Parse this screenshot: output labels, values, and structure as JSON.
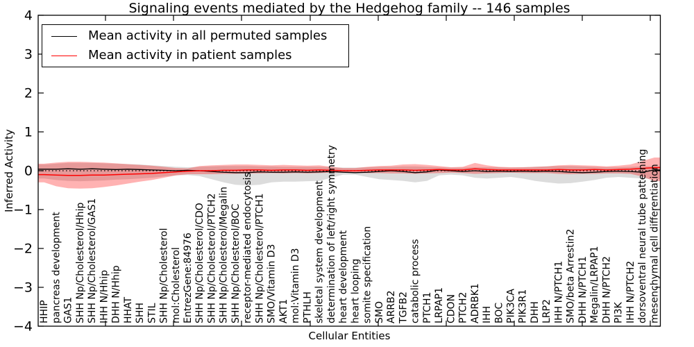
{
  "figure": {
    "title": "Signaling events mediated by the Hedgehog family -- 146 samples",
    "xlabel": "Cellular Entities",
    "ylabel": "Inferred Activity"
  },
  "colors": {
    "permuted_line": "#000000",
    "patient_line": "#ff0000",
    "permuted_band": "rgba(128,128,128,0.28)",
    "patient_band": "rgba(255,0,0,0.30)",
    "axis": "#000000"
  },
  "chart_data": {
    "type": "line",
    "title": "Signaling events mediated by the Hedgehog family -- 146 samples",
    "xlabel": "Cellular Entities",
    "ylabel": "Inferred Activity",
    "ylim": [
      -4,
      4
    ],
    "yticks": [
      4,
      3,
      2,
      1,
      0,
      -1,
      -2,
      -3,
      -4
    ],
    "ytick_labels": [
      "4",
      "3",
      "2",
      "1",
      "0",
      "−1",
      "−2",
      "−3",
      "−4"
    ],
    "legend_position": "upper left",
    "zero_line": true,
    "grid": false,
    "categories": [
      "HHIP",
      "pancreas development",
      "GAS1",
      "SHH Np/Cholesterol/Hhip",
      "SHH Np/Cholesterol/GAS1",
      "IHH N/Hhip",
      "DHH N/Hhip",
      "HHAT",
      "SHH",
      "STIL",
      "SHH Np/Cholesterol",
      "mol:Cholesterol",
      "EntrezGene:84976",
      "SHH Np/Cholesterol/CDO",
      "SHH Np/Cholesterol/PTCH2",
      "SHH Np/Cholesterol/Megalin",
      "SHH Np/Cholesterol/BOC",
      "receptor-mediated endocytosis",
      "SHH Np/Cholesterol/PTCH1",
      "SMO/Vitamin D3",
      "AKT1",
      "mol:Vitamin D3",
      "PTHLH",
      "skeletal system development",
      "determination of left/right symmetry",
      "heart development",
      "heart looping",
      "somite specification",
      "SMO",
      "ARRB2",
      "TGFB2",
      "catabolic process",
      "PTCH1",
      "LRPAP1",
      "CDON",
      "PTCH2",
      "ADRBK1",
      "IHH",
      "BOC",
      "PIK3CA",
      "PIK3R1",
      "DHH",
      "LRP2",
      "IHH N/PTCH1",
      "SMO/beta Arrestin2",
      "DHH N/PTCH1",
      "Megalin/LRPAP1",
      "DHH N/PTCH2",
      "PI3K",
      "IHH N/PTCH2",
      "dorsoventral neural tube patterning",
      "mesenchymal cell differentiation"
    ],
    "series": [
      {
        "name": "Mean activity in all permuted samples",
        "color": "#000000",
        "band_color": "rgba(128,128,128,0.28)",
        "values": [
          0.04,
          0.04,
          0.05,
          0.04,
          0.05,
          0.04,
          0.03,
          0.04,
          0.03,
          0.02,
          0.01,
          0.0,
          0.01,
          0.0,
          -0.02,
          -0.04,
          -0.05,
          -0.05,
          -0.03,
          -0.04,
          -0.04,
          -0.03,
          -0.04,
          -0.03,
          -0.02,
          -0.04,
          -0.05,
          -0.04,
          -0.02,
          0.0,
          -0.02,
          -0.05,
          -0.03,
          0.02,
          0.0,
          -0.02,
          0.0,
          -0.02,
          -0.01,
          -0.02,
          -0.01,
          -0.02,
          -0.01,
          -0.02,
          -0.04,
          -0.05,
          -0.04,
          -0.02,
          -0.01,
          -0.02,
          -0.04,
          0.02
        ],
        "band_upper": [
          0.16,
          0.18,
          0.2,
          0.2,
          0.2,
          0.19,
          0.18,
          0.17,
          0.16,
          0.14,
          0.12,
          0.1,
          0.09,
          0.1,
          0.11,
          0.12,
          0.12,
          0.12,
          0.11,
          0.11,
          0.1,
          0.1,
          0.1,
          0.1,
          0.09,
          0.08,
          0.08,
          0.09,
          0.1,
          0.1,
          0.11,
          0.11,
          0.1,
          0.09,
          0.08,
          0.08,
          0.09,
          0.09,
          0.09,
          0.08,
          0.09,
          0.1,
          0.11,
          0.12,
          0.12,
          0.11,
          0.1,
          0.09,
          0.09,
          0.1,
          0.11,
          0.12
        ],
        "band_lower": [
          -0.2,
          -0.24,
          -0.26,
          -0.27,
          -0.26,
          -0.25,
          -0.23,
          -0.22,
          -0.2,
          -0.18,
          -0.15,
          -0.12,
          -0.11,
          -0.14,
          -0.22,
          -0.3,
          -0.36,
          -0.38,
          -0.36,
          -0.3,
          -0.28,
          -0.28,
          -0.27,
          -0.26,
          -0.18,
          -0.1,
          -0.1,
          -0.16,
          -0.22,
          -0.24,
          -0.26,
          -0.3,
          -0.26,
          -0.12,
          -0.1,
          -0.12,
          -0.18,
          -0.2,
          -0.18,
          -0.16,
          -0.2,
          -0.26,
          -0.3,
          -0.33,
          -0.32,
          -0.28,
          -0.24,
          -0.18,
          -0.16,
          -0.18,
          -0.2,
          -0.22
        ]
      },
      {
        "name": "Mean activity in patient samples",
        "color": "#ff0000",
        "band_color": "rgba(255,0,0,0.30)",
        "values": [
          -0.1,
          -0.11,
          -0.12,
          -0.12,
          -0.11,
          -0.11,
          -0.1,
          -0.09,
          -0.08,
          -0.07,
          -0.05,
          -0.03,
          -0.01,
          0.0,
          0.0,
          0.01,
          0.01,
          0.02,
          0.02,
          0.01,
          0.02,
          0.02,
          0.01,
          0.02,
          0.01,
          0.0,
          0.0,
          0.01,
          0.02,
          0.02,
          0.02,
          0.01,
          0.02,
          0.03,
          0.02,
          0.02,
          0.05,
          0.03,
          0.02,
          0.02,
          0.02,
          0.02,
          0.02,
          0.03,
          0.02,
          0.02,
          0.03,
          0.02,
          0.03,
          0.04,
          0.06,
          0.08
        ],
        "band_upper": [
          0.18,
          0.21,
          0.23,
          0.23,
          0.22,
          0.21,
          0.19,
          0.17,
          0.15,
          0.13,
          0.1,
          0.07,
          0.06,
          0.12,
          0.14,
          0.15,
          0.16,
          0.16,
          0.15,
          0.14,
          0.15,
          0.14,
          0.13,
          0.14,
          0.1,
          0.07,
          0.07,
          0.1,
          0.12,
          0.13,
          0.16,
          0.17,
          0.15,
          0.12,
          0.09,
          0.1,
          0.2,
          0.14,
          0.1,
          0.09,
          0.09,
          0.1,
          0.11,
          0.14,
          0.15,
          0.14,
          0.13,
          0.11,
          0.13,
          0.16,
          0.25,
          0.34
        ],
        "band_lower": [
          -0.3,
          -0.4,
          -0.45,
          -0.46,
          -0.45,
          -0.42,
          -0.38,
          -0.33,
          -0.28,
          -0.24,
          -0.18,
          -0.12,
          -0.09,
          -0.09,
          -0.09,
          -0.08,
          -0.08,
          -0.07,
          -0.07,
          -0.06,
          -0.07,
          -0.06,
          -0.07,
          -0.06,
          -0.05,
          -0.05,
          -0.05,
          -0.06,
          -0.06,
          -0.07,
          -0.07,
          -0.08,
          -0.07,
          -0.06,
          -0.05,
          -0.06,
          -0.08,
          -0.07,
          -0.06,
          -0.05,
          -0.06,
          -0.06,
          -0.06,
          -0.08,
          -0.09,
          -0.08,
          -0.08,
          -0.07,
          -0.07,
          -0.08,
          -0.15,
          -0.27
        ]
      }
    ]
  }
}
